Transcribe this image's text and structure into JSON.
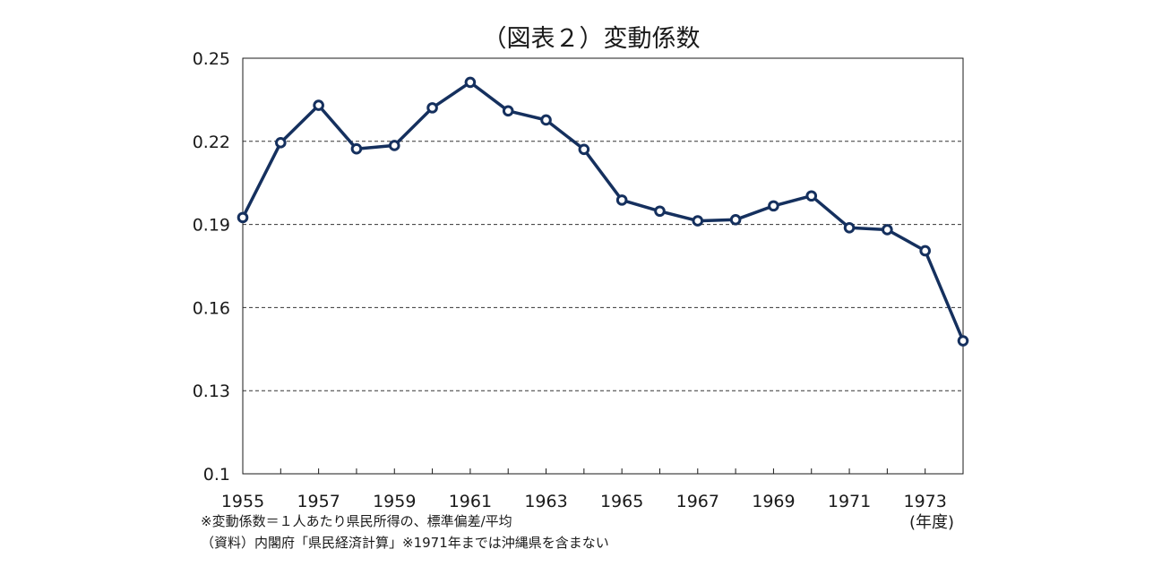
{
  "chart_data": {
    "type": "line",
    "title": "（図表２）変動係数",
    "x_unit_label": "(年度)",
    "x": [
      1955,
      1956,
      1957,
      1958,
      1959,
      1960,
      1961,
      1962,
      1963,
      1964,
      1965,
      1966,
      1967,
      1968,
      1969,
      1970,
      1971,
      1972,
      1973,
      1974
    ],
    "x_tick_labels": [
      "1955",
      "1957",
      "1959",
      "1961",
      "1963",
      "1965",
      "1967",
      "1969",
      "1971",
      "1973"
    ],
    "series": [
      {
        "values": [
          0.1925,
          0.2195,
          0.233,
          0.2173,
          0.2185,
          0.2321,
          0.2413,
          0.231,
          0.2277,
          0.2171,
          0.1988,
          0.1948,
          0.1913,
          0.1917,
          0.1967,
          0.2003,
          0.1888,
          0.1881,
          0.1805,
          0.148
        ]
      }
    ],
    "y_tick_labels": [
      "0.25",
      "0.22",
      "0.19",
      "0.16",
      "0.13",
      "0.1"
    ],
    "y_ticks": [
      0.25,
      0.22,
      0.19,
      0.16,
      0.13,
      0.1
    ],
    "ylim": [
      0.1,
      0.25
    ],
    "xlim": [
      1955,
      1974
    ],
    "grid": "horizontal dashed",
    "legend": "none",
    "colors": {
      "line": "#15305e",
      "marker_fill": "#ffffff",
      "grid": "#333333",
      "axis": "#1a1a1a"
    }
  },
  "notes": [
    "※変動係数＝１人あたり県民所得の、標準偏差/平均",
    "（資料）内閣府「県民経済計算」※1971年までは沖縄県を含まない"
  ]
}
